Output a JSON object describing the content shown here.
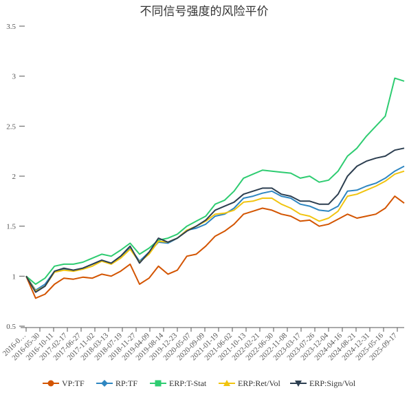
{
  "chart_data": {
    "type": "line",
    "title": "不同信号强度的风险平价",
    "xlabel": "",
    "ylabel": "",
    "ylim": [
      0.5,
      3.5
    ],
    "yticks": [
      0.5,
      1,
      1.5,
      2,
      2.5,
      3,
      3.5
    ],
    "ytick_labels": [
      "0.5",
      "1",
      "1.5",
      "2",
      "2.5",
      "3",
      "3.5"
    ],
    "grid": false,
    "legend_position": "bottom",
    "x_tick_labels": [
      "2016-0…",
      "2016-05-30",
      "2016-10-11",
      "2017-02-17",
      "2017-06-27",
      "2017-11-02",
      "2018-03-13",
      "2018-07-19",
      "2018-11-27",
      "2019-04-09",
      "2019-08-14",
      "2019-12-23",
      "2020-05-07",
      "2020-09-09",
      "2021-01-19",
      "2021-06-02",
      "2021-10-13",
      "2022-02-21",
      "2022-06-30",
      "2022-11-08",
      "2023-03-17",
      "2023-07-26",
      "2023-12-04",
      "2024-04-16",
      "2024-08-21",
      "2024-12-31",
      "2025-05-16",
      "2025-09-17"
    ],
    "x": [
      "2016-01",
      "2016-04",
      "2016-07",
      "2016-10",
      "2017-01",
      "2017-04",
      "2017-07",
      "2017-10",
      "2018-01",
      "2018-04",
      "2018-07",
      "2018-10",
      "2019-01",
      "2019-04",
      "2019-07",
      "2019-10",
      "2020-01",
      "2020-04",
      "2020-07",
      "2020-10",
      "2021-01",
      "2021-04",
      "2021-07",
      "2021-10",
      "2022-01",
      "2022-04",
      "2022-07",
      "2022-10",
      "2023-01",
      "2023-04",
      "2023-07",
      "2023-10",
      "2024-01",
      "2024-04",
      "2024-07",
      "2024-10",
      "2025-01",
      "2025-04",
      "2025-07",
      "2025-10",
      "2025-12"
    ],
    "series": [
      {
        "name": "VP:TF",
        "color": "#d35400",
        "values": [
          1.0,
          0.78,
          0.82,
          0.92,
          0.98,
          0.97,
          0.99,
          0.98,
          1.02,
          1.0,
          1.05,
          1.12,
          0.92,
          0.98,
          1.1,
          1.02,
          1.06,
          1.2,
          1.22,
          1.3,
          1.4,
          1.45,
          1.52,
          1.62,
          1.65,
          1.68,
          1.66,
          1.62,
          1.6,
          1.55,
          1.56,
          1.5,
          1.52,
          1.57,
          1.62,
          1.58,
          1.6,
          1.62,
          1.68,
          1.8,
          1.73
        ]
      },
      {
        "name": "RP:TF",
        "color": "#2e86c1",
        "values": [
          1.0,
          0.86,
          0.92,
          1.05,
          1.07,
          1.06,
          1.08,
          1.12,
          1.16,
          1.13,
          1.2,
          1.28,
          1.15,
          1.24,
          1.34,
          1.33,
          1.38,
          1.46,
          1.48,
          1.52,
          1.6,
          1.62,
          1.68,
          1.78,
          1.8,
          1.83,
          1.85,
          1.8,
          1.78,
          1.72,
          1.7,
          1.66,
          1.65,
          1.7,
          1.85,
          1.86,
          1.9,
          1.93,
          1.98,
          2.05,
          2.1
        ]
      },
      {
        "name": "ERP:T-Stat",
        "color": "#2ecc71",
        "values": [
          1.0,
          0.92,
          0.98,
          1.1,
          1.12,
          1.12,
          1.14,
          1.18,
          1.22,
          1.2,
          1.26,
          1.33,
          1.22,
          1.28,
          1.36,
          1.38,
          1.42,
          1.5,
          1.55,
          1.6,
          1.72,
          1.76,
          1.85,
          1.98,
          2.02,
          2.06,
          2.05,
          2.04,
          2.03,
          1.98,
          2.0,
          1.94,
          1.96,
          2.05,
          2.2,
          2.28,
          2.4,
          2.5,
          2.6,
          2.98,
          2.95
        ]
      },
      {
        "name": "ERP:Ret/Vol",
        "color": "#f1c40f",
        "values": [
          1.0,
          0.85,
          0.9,
          1.04,
          1.06,
          1.05,
          1.07,
          1.1,
          1.15,
          1.12,
          1.18,
          1.27,
          1.14,
          1.22,
          1.35,
          1.34,
          1.38,
          1.46,
          1.5,
          1.55,
          1.62,
          1.63,
          1.66,
          1.74,
          1.75,
          1.78,
          1.78,
          1.72,
          1.68,
          1.62,
          1.6,
          1.55,
          1.58,
          1.65,
          1.8,
          1.82,
          1.86,
          1.9,
          1.95,
          2.02,
          2.05
        ]
      },
      {
        "name": "ERP:Sign/Vol",
        "color": "#2c3e50",
        "values": [
          1.0,
          0.84,
          0.9,
          1.05,
          1.08,
          1.06,
          1.08,
          1.12,
          1.16,
          1.13,
          1.2,
          1.3,
          1.13,
          1.24,
          1.38,
          1.34,
          1.38,
          1.45,
          1.5,
          1.56,
          1.66,
          1.7,
          1.74,
          1.82,
          1.85,
          1.88,
          1.88,
          1.82,
          1.8,
          1.75,
          1.75,
          1.72,
          1.72,
          1.82,
          2.0,
          2.1,
          2.15,
          2.18,
          2.2,
          2.26,
          2.28
        ]
      }
    ]
  }
}
